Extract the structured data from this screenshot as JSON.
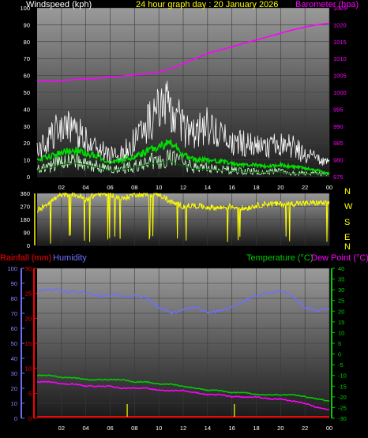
{
  "header": {
    "wind_title": "Windspeed (kph)",
    "graph_title": "24 hour graph day : 20 January 2026",
    "baro_title": "Barometer (hpa)"
  },
  "colors": {
    "background": "#000000",
    "wind_gust": "#ffffff",
    "wind_avg": "#00e000",
    "wind_light": "#c8ffc8",
    "barometer": "#ff00ff",
    "direction": "#ffff00",
    "rainfall": "#ff0000",
    "humidity": "#6f6fff",
    "temperature": "#00cc00",
    "dewpoint": "#ff00ff",
    "rain_daily": "#ffff00",
    "label_yellow": "#ffff00"
  },
  "compass": [
    "N",
    "W",
    "S",
    "E",
    "N"
  ],
  "bottom_header": {
    "rain_label": "Rainfall (mm)",
    "humidity_label": "Humidity",
    "temp_label": "Temperature (°C)",
    "dew_label": "Dew Point (°C)"
  },
  "chart_data": [
    {
      "type": "line",
      "name": "wind-barometer",
      "title": "24 hour graph day : 20 January 2026",
      "x_ticks": [
        "02",
        "04",
        "06",
        "08",
        "10",
        "12",
        "14",
        "16",
        "18",
        "20",
        "22",
        "00"
      ],
      "y_left": {
        "label": "Windspeed (kph)",
        "ylim": [
          0,
          100
        ],
        "ticks": [
          0,
          10,
          20,
          30,
          40,
          50,
          60,
          70,
          80,
          90,
          100
        ]
      },
      "y_right": {
        "label": "Barometer (hpa)",
        "ylim": [
          975,
          1025
        ],
        "ticks": [
          975,
          980,
          985,
          990,
          995,
          1000,
          1005,
          1010,
          1015,
          1020,
          1025
        ]
      },
      "x_hours": [
        0,
        1,
        2,
        3,
        4,
        5,
        6,
        7,
        8,
        9,
        10,
        11,
        12,
        13,
        14,
        15,
        16,
        17,
        18,
        19,
        20,
        21,
        22,
        23,
        24
      ],
      "series": [
        {
          "key": "gust",
          "values": [
            16,
            24,
            33,
            28,
            25,
            18,
            14,
            16,
            23,
            34,
            42,
            46,
            30,
            28,
            32,
            26,
            22,
            21,
            20,
            18,
            22,
            20,
            14,
            12,
            8
          ]
        },
        {
          "key": "average",
          "values": [
            10,
            12,
            14,
            16,
            14,
            12,
            8,
            10,
            12,
            15,
            18,
            20,
            13,
            10,
            10,
            9,
            8,
            7,
            7,
            6,
            7,
            6,
            5,
            4,
            2
          ]
        },
        {
          "key": "low",
          "values": [
            4,
            6,
            8,
            9,
            8,
            6,
            4,
            5,
            6,
            8,
            9,
            10,
            7,
            5,
            5,
            4,
            4,
            3,
            3,
            3,
            3,
            2,
            2,
            2,
            1
          ]
        },
        {
          "key": "barometer",
          "values": [
            1003.5,
            1003.2,
            1003.4,
            1003.8,
            1004.0,
            1004.2,
            1004.5,
            1004.8,
            1005.2,
            1005.5,
            1006.0,
            1007.0,
            1008.5,
            1010.0,
            1011.5,
            1012.5,
            1013.5,
            1014.5,
            1015.5,
            1016.5,
            1017.5,
            1018.5,
            1019.3,
            1020.0,
            1020.5
          ]
        }
      ]
    },
    {
      "type": "line",
      "name": "wind-direction",
      "y_left": {
        "ylim": [
          0,
          360
        ],
        "ticks": [
          0,
          90,
          180,
          270,
          360
        ]
      },
      "x_hours": [
        0,
        1,
        2,
        3,
        4,
        5,
        6,
        7,
        8,
        9,
        10,
        11,
        12,
        13,
        14,
        15,
        16,
        17,
        18,
        19,
        20,
        21,
        22,
        23,
        24
      ],
      "series": [
        {
          "key": "direction",
          "values": [
            240,
            300,
            350,
            355,
            320,
            355,
            355,
            320,
            355,
            350,
            355,
            300,
            270,
            275,
            265,
            260,
            270,
            255,
            275,
            290,
            285,
            290,
            290,
            295,
            290
          ]
        }
      ]
    },
    {
      "type": "line",
      "name": "temp-humidity-rain",
      "x_ticks": [
        "02",
        "04",
        "06",
        "08",
        "10",
        "12",
        "14",
        "16",
        "18",
        "20",
        "22",
        "00"
      ],
      "y_rain": {
        "label": "Rainfall (mm)",
        "ylim": [
          0,
          30
        ],
        "ticks": [
          0,
          5,
          10,
          15,
          20,
          25,
          30
        ]
      },
      "y_humidity": {
        "label": "Humidity",
        "ylim": [
          0,
          100
        ],
        "ticks": [
          0,
          10,
          20,
          30,
          40,
          50,
          60,
          70,
          80,
          90,
          100
        ]
      },
      "y_temp": {
        "label": "Temperature (°C)",
        "ylim": [
          -30,
          40
        ],
        "ticks": [
          -30,
          -25,
          -20,
          -15,
          -10,
          -5,
          0,
          5,
          10,
          15,
          20,
          25,
          30,
          35,
          40
        ]
      },
      "x_hours": [
        0,
        1,
        2,
        3,
        4,
        5,
        6,
        7,
        8,
        9,
        10,
        11,
        12,
        13,
        14,
        15,
        16,
        17,
        18,
        19,
        20,
        21,
        22,
        23,
        24
      ],
      "series": [
        {
          "key": "humidity",
          "values": [
            85,
            86,
            85,
            84,
            84,
            82,
            82,
            82,
            82,
            80,
            74,
            70,
            72,
            74,
            70,
            72,
            74,
            78,
            82,
            84,
            85,
            81,
            74,
            72,
            73
          ]
        },
        {
          "key": "temperature",
          "values": [
            -10,
            -10,
            -11,
            -11,
            -12,
            -12,
            -12,
            -12,
            -13,
            -13,
            -14,
            -14,
            -15,
            -16,
            -17,
            -17,
            -18,
            -18,
            -19,
            -19,
            -19,
            -19,
            -20,
            -21,
            -22
          ]
        },
        {
          "key": "dewpoint",
          "values": [
            -13,
            -13,
            -14,
            -14,
            -15,
            -15,
            -15,
            -16,
            -16,
            -16,
            -17,
            -17,
            -17,
            -18,
            -19,
            -19,
            -20,
            -20,
            -20,
            -21,
            -21,
            -22,
            -23,
            -25,
            -26
          ]
        },
        {
          "key": "rain_rate",
          "values": [
            0,
            0,
            0,
            0,
            0,
            0,
            0,
            0,
            0,
            0,
            0,
            0,
            0,
            0,
            0,
            0,
            0,
            0,
            0,
            0,
            0,
            0,
            0,
            0,
            0
          ]
        }
      ],
      "rain_ticks_hours": [
        7.4,
        16.2
      ]
    }
  ]
}
